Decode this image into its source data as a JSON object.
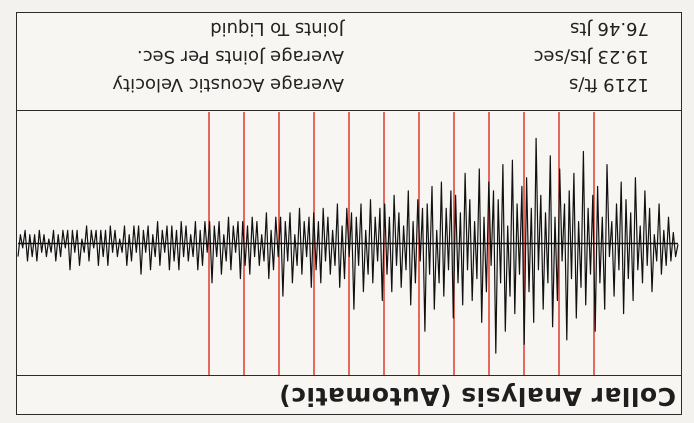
{
  "chart_data": {
    "type": "line",
    "title": "Collar Analysis (Automatic)",
    "metrics": [
      {
        "label": "Average Acoustic Velocity",
        "value": "1219 ft/s"
      },
      {
        "label": "Average Joints Per Sec.",
        "value": "19.23 Jts/sec"
      },
      {
        "label": "Joints To Liquid",
        "value": "76.46 Jts"
      }
    ],
    "series": [
      {
        "color": "#111111",
        "values": [
          0.02,
          0.3,
          -0.25,
          0.4,
          -0.6,
          0.5,
          -0.3,
          0.7,
          -0.9,
          0.4,
          -0.2,
          1.1,
          -0.8,
          0.5,
          -1.2,
          0.9,
          -0.4,
          0.6,
          -1.5,
          1.3,
          -0.7,
          0.8,
          -1.0,
          1.6,
          -1.4,
          0.6,
          -0.9,
          1.2,
          -0.5,
          0.3,
          -1.8,
          1.5,
          -0.6,
          0.9,
          -1.3,
          2.0,
          -1.1,
          0.7,
          -0.8,
          1.4,
          -2.1,
          1.0,
          -0.5,
          1.7,
          -1.6,
          0.8,
          -1.2,
          2.2,
          -0.9,
          0.4,
          -1.7,
          1.3,
          -0.6,
          1.9,
          -2.0,
          0.9,
          -0.7,
          1.5,
          -1.1,
          0.6,
          -2.4,
          1.8,
          -0.8,
          1.1,
          -1.5,
          2.3,
          -1.3,
          0.7,
          -0.9,
          1.6,
          -1.9,
          1.2,
          -0.4,
          2.0,
          -1.8,
          0.9,
          -1.0,
          2.5,
          -1.2,
          0.5,
          -1.4,
          1.1,
          -0.6,
          1.8,
          -1.7,
          0.8,
          -0.5,
          1.3,
          -1.0,
          0.6,
          -1.6,
          1.4,
          -0.7,
          0.9,
          -1.1,
          1.7,
          -1.2,
          0.6,
          -0.8,
          1.2,
          -1.4,
          0.9,
          -0.3,
          1.5,
          -1.3,
          0.7,
          -0.9,
          2.0,
          -0.8,
          0.4,
          -1.0,
          0.9,
          -0.5,
          1.4,
          -1.2,
          0.6,
          -0.4,
          1.0,
          -0.7,
          0.5,
          -1.1,
          1.1,
          -0.6,
          0.7,
          -0.9,
          1.3,
          -0.8,
          0.4,
          -0.6,
          0.9,
          -1.0,
          0.7,
          -0.3,
          1.1,
          -0.9,
          0.5,
          -0.6,
          1.5,
          -0.7,
          0.3,
          -0.8,
          0.8,
          -0.4,
          1.0,
          -0.9,
          0.5,
          -0.3,
          0.7,
          -0.6,
          0.4,
          -0.8,
          0.9,
          -0.5,
          0.6,
          -0.7,
          1.0,
          -0.6,
          0.3,
          -0.5,
          0.7,
          -0.8,
          0.5,
          -0.2,
          0.9,
          -0.7,
          0.4,
          -0.5,
          1.2,
          -0.6,
          0.3,
          -0.6,
          0.6,
          -0.3,
          0.8,
          -0.7,
          0.4,
          -0.2,
          0.5,
          -0.5,
          0.3,
          -0.6,
          0.7,
          -0.4,
          0.5,
          -0.5,
          0.8,
          -0.5,
          0.2,
          -0.4,
          0.6,
          -0.6,
          0.4,
          -0.2,
          0.7,
          -0.5,
          0.3,
          -0.4,
          0.9,
          -0.5,
          0.2,
          -0.5,
          0.5,
          -0.3,
          0.6,
          -0.5,
          0.3,
          -0.2,
          0.4,
          -0.4,
          0.3,
          -0.5,
          0.6,
          -0.3,
          0.4,
          -0.4,
          0.6,
          -0.4,
          0.2,
          -0.3,
          0.5,
          -0.5,
          0.3,
          -0.2,
          0.6,
          -0.4,
          0.2,
          -0.3,
          0.7,
          -0.4,
          0.2,
          -0.4,
          0.4,
          -0.2,
          0.5,
          -0.4,
          0.2,
          -0.1,
          0.3,
          -0.3,
          0.2,
          -0.4,
          0.5,
          -0.3,
          0.3,
          -0.3,
          0.5,
          -0.3,
          0.1,
          -0.3,
          0.4,
          -0.4,
          0.2,
          -0.1,
          0.5,
          -0.3,
          0.2,
          -0.3,
          0.6,
          -0.3,
          0.1,
          -0.3,
          0.3,
          -0.2,
          0.4,
          -0.3,
          0.2,
          -0.1,
          0.3,
          -0.2,
          0.2,
          -0.3,
          0.4,
          -0.2,
          0.3,
          -0.2,
          0.4,
          -0.3,
          0.1,
          -0.2,
          0.3
        ]
      }
    ],
    "markers": {
      "color": "#e0473b",
      "count": 12
    },
    "baseline": 0,
    "ylim": [
      -3,
      3
    ],
    "grid": false
  }
}
